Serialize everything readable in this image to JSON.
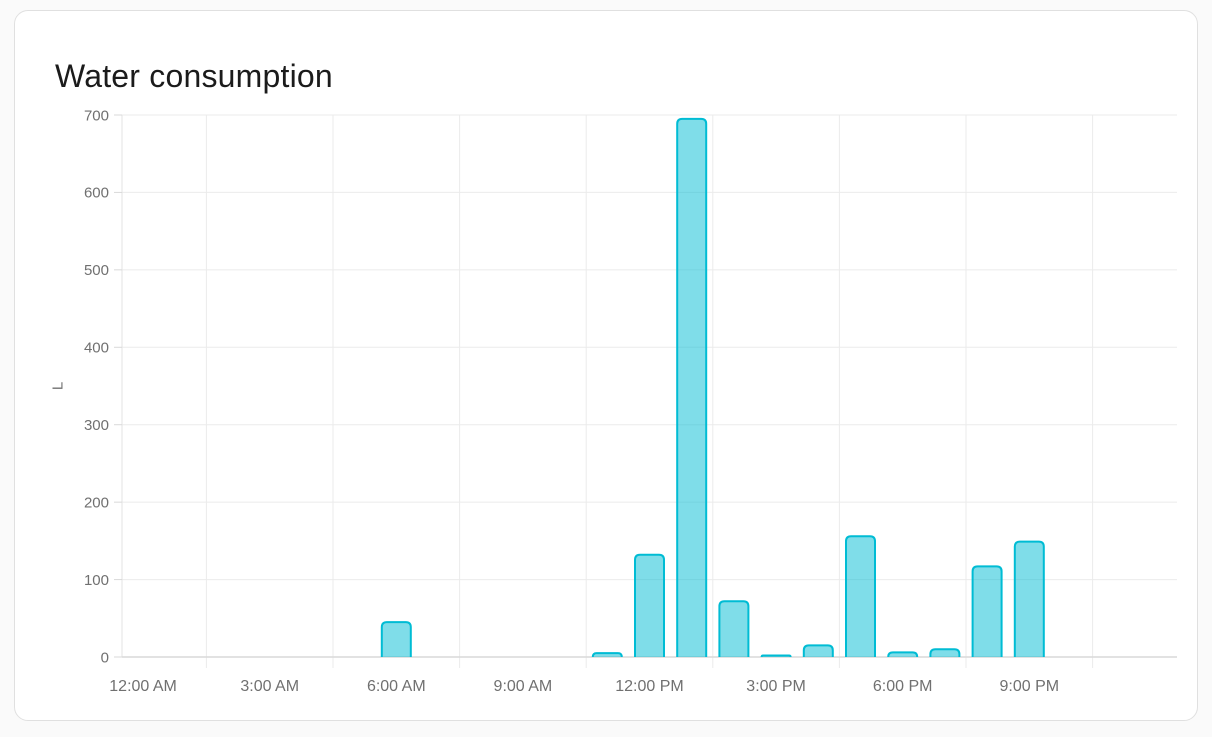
{
  "card": {
    "title": "Water consumption"
  },
  "chart_data": {
    "type": "bar",
    "title": "Water consumption",
    "xlabel": "",
    "ylabel": "L",
    "unit": "L",
    "ylim": [
      0,
      700
    ],
    "y_ticks": [
      0,
      100,
      200,
      300,
      400,
      500,
      600,
      700
    ],
    "grid": true,
    "legend": "none",
    "categories": [
      "12:00 AM",
      "1:00 AM",
      "2:00 AM",
      "3:00 AM",
      "4:00 AM",
      "5:00 AM",
      "6:00 AM",
      "7:00 AM",
      "8:00 AM",
      "9:00 AM",
      "10:00 AM",
      "11:00 AM",
      "12:00 PM",
      "1:00 PM",
      "2:00 PM",
      "3:00 PM",
      "4:00 PM",
      "5:00 PM",
      "6:00 PM",
      "7:00 PM",
      "8:00 PM",
      "9:00 PM",
      "10:00 PM",
      "11:00 PM"
    ],
    "values": [
      0,
      0,
      0,
      0,
      0,
      0,
      45,
      0,
      0,
      0,
      0,
      5,
      132,
      695,
      72,
      2,
      15,
      156,
      6,
      10,
      117,
      149,
      0,
      0
    ],
    "x_tick_labels": [
      "12:00 AM",
      "3:00 AM",
      "6:00 AM",
      "9:00 AM",
      "12:00 PM",
      "3:00 PM",
      "6:00 PM",
      "9:00 PM"
    ],
    "x_tick_hours": [
      0,
      3,
      6,
      9,
      12,
      15,
      18,
      21
    ],
    "colors": {
      "bar_fill": "rgba(0,188,212,0.5)",
      "bar_stroke": "#00bcd4",
      "grid_line": "#ebebeb",
      "axis_line": "#d9d9d9",
      "y_axis_line": "#e3e3e3",
      "tick_label": "#707070",
      "title_text": "#1b1b1b"
    }
  }
}
